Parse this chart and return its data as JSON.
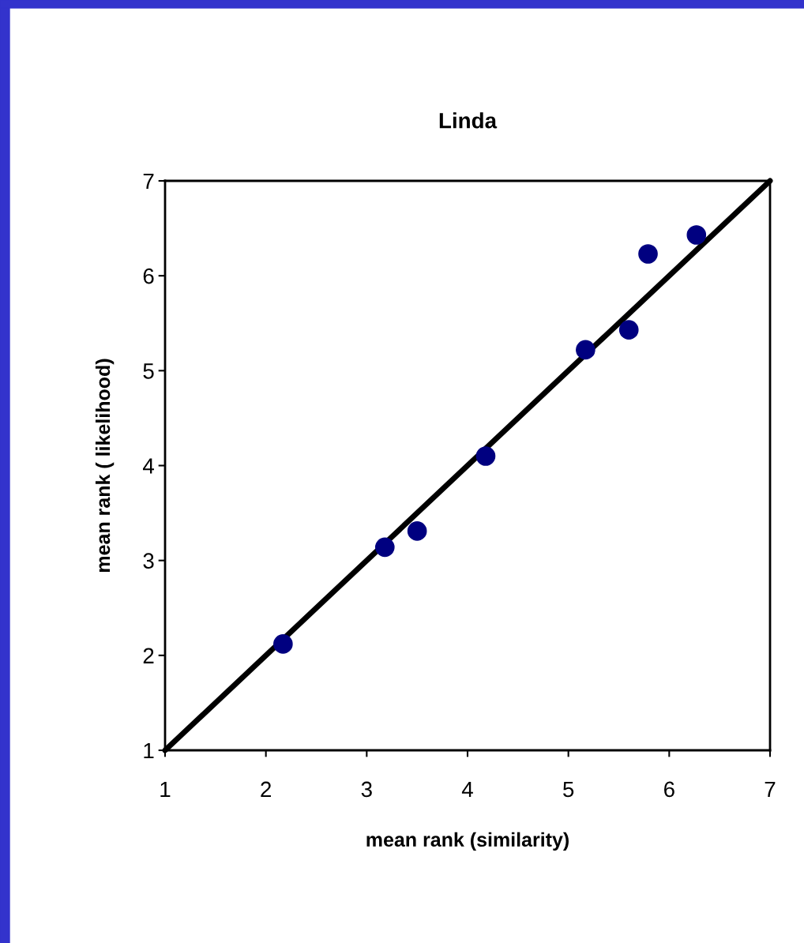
{
  "chart_data": {
    "type": "scatter",
    "title": "Linda",
    "xlabel": "mean rank (similarity)",
    "ylabel": "mean rank ( likelihood)",
    "x": [
      2.17,
      3.18,
      3.5,
      4.18,
      5.17,
      5.6,
      5.79,
      6.27
    ],
    "series": [
      {
        "marker": "circle",
        "color": "#000080",
        "values": [
          2.12,
          3.14,
          3.31,
          4.1,
          5.22,
          5.43,
          6.23,
          6.43
        ]
      },
      {
        "type": "line",
        "color": "#000000",
        "x": [
          1,
          7
        ],
        "values": [
          1,
          7
        ]
      }
    ],
    "xlim": [
      1,
      7
    ],
    "ylim": [
      1,
      7
    ],
    "xticks": [
      1,
      2,
      3,
      4,
      5,
      6,
      7
    ],
    "yticks": [
      1,
      2,
      3,
      4,
      5,
      6,
      7
    ],
    "grid": false,
    "legend": false
  }
}
